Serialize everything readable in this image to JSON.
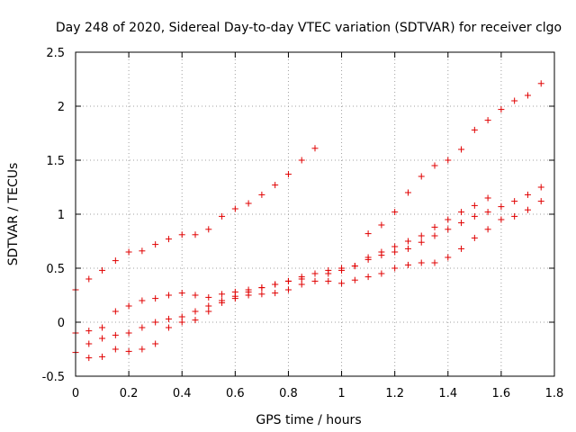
{
  "chart_data": {
    "type": "scatter",
    "title": "Day 248 of 2020, Sidereal Day-to-day VTEC variation (SDTVAR) for receiver clgo",
    "xlabel": "GPS time / hours",
    "ylabel": "SDTVAR / TECUs",
    "xlim": [
      0,
      1.8
    ],
    "ylim": [
      -0.5,
      2.5
    ],
    "xticks": [
      "0",
      "0.2",
      "0.4",
      "0.6",
      "0.8",
      "1",
      "1.2",
      "1.4",
      "1.6",
      "1.8"
    ],
    "yticks": [
      "-0.5",
      "0",
      "0.5",
      "1",
      "1.5",
      "2",
      "2.5"
    ],
    "grid": true,
    "marker": "+",
    "marker_color": "#e00000",
    "series": [
      {
        "x": [
          0.0,
          0.05,
          0.1,
          0.15,
          0.2,
          0.25,
          0.3,
          0.35,
          0.4,
          0.45,
          0.5,
          0.55,
          0.6,
          0.65,
          0.7,
          0.75,
          0.8,
          0.85,
          0.9
        ],
        "y": [
          0.3,
          0.4,
          0.48,
          0.57,
          0.65,
          0.66,
          0.72,
          0.77,
          0.81,
          0.81,
          0.86,
          0.98,
          1.05,
          1.1,
          1.18,
          1.27,
          1.37,
          1.5,
          1.61
        ]
      },
      {
        "x": [
          0.0,
          0.05,
          0.1,
          0.15,
          0.2,
          0.25,
          0.3,
          0.35,
          0.4,
          0.45,
          0.5,
          0.55,
          0.6,
          0.65,
          0.7,
          0.75,
          0.8,
          0.85,
          0.9,
          0.95,
          1.0,
          1.05,
          1.1,
          1.15,
          1.2,
          1.25,
          1.3,
          1.35,
          1.4,
          1.45,
          1.5,
          1.55,
          1.6,
          1.65,
          1.7,
          1.75
        ],
        "y": [
          -0.1,
          -0.08,
          -0.05,
          0.1,
          0.15,
          0.2,
          0.22,
          0.25,
          0.27,
          0.25,
          0.23,
          0.26,
          0.28,
          0.25,
          0.26,
          0.27,
          0.3,
          0.35,
          0.38,
          0.38,
          0.36,
          0.39,
          0.42,
          0.45,
          0.5,
          0.53,
          0.55,
          0.55,
          0.6,
          0.68,
          0.78,
          0.86,
          0.95,
          0.98,
          1.04,
          1.12
        ]
      },
      {
        "x": [
          0.0,
          0.05,
          0.1,
          0.15,
          0.2,
          0.25,
          0.3,
          0.35,
          0.4,
          0.45,
          0.5,
          0.55,
          0.6,
          0.65,
          0.7,
          0.75,
          0.8,
          0.85,
          0.9,
          0.95,
          1.0,
          1.05,
          1.1,
          1.15,
          1.2,
          1.25,
          1.3,
          1.35,
          1.4,
          1.45,
          1.5,
          1.55,
          1.6,
          1.65,
          1.7,
          1.75
        ],
        "y": [
          -0.28,
          -0.2,
          -0.15,
          -0.12,
          -0.1,
          -0.05,
          0.0,
          0.03,
          0.05,
          0.1,
          0.15,
          0.2,
          0.24,
          0.28,
          0.32,
          0.35,
          0.38,
          0.4,
          0.45,
          0.48,
          0.5,
          0.52,
          0.58,
          0.62,
          0.65,
          0.68,
          0.74,
          0.8,
          0.86,
          0.92,
          0.98,
          1.02,
          1.07,
          1.12,
          1.18,
          1.25
        ]
      },
      {
        "x": [
          0.05,
          0.1,
          0.15,
          0.2,
          0.25,
          0.3,
          0.35,
          0.4,
          0.45,
          0.5,
          0.55,
          0.6,
          0.65,
          0.7,
          0.75,
          0.8,
          0.85,
          0.9,
          0.95,
          1.0,
          1.05,
          1.1,
          1.15,
          1.2,
          1.25,
          1.3,
          1.35,
          1.4,
          1.45,
          1.5,
          1.55
        ],
        "y": [
          -0.33,
          -0.32,
          -0.25,
          -0.27,
          -0.25,
          -0.2,
          -0.05,
          0.0,
          0.02,
          0.1,
          0.18,
          0.22,
          0.3,
          0.32,
          0.35,
          0.38,
          0.42,
          0.45,
          0.45,
          0.48,
          0.52,
          0.6,
          0.65,
          0.7,
          0.75,
          0.8,
          0.88,
          0.95,
          1.02,
          1.08,
          1.15
        ]
      },
      {
        "x": [
          1.1,
          1.15,
          1.2,
          1.25,
          1.3,
          1.35,
          1.4,
          1.45,
          1.5,
          1.55,
          1.6,
          1.65,
          1.7,
          1.75
        ],
        "y": [
          0.82,
          0.9,
          1.02,
          1.2,
          1.35,
          1.45,
          1.5,
          1.6,
          1.78,
          1.87,
          1.97,
          2.05,
          2.1,
          2.21
        ]
      }
    ]
  }
}
